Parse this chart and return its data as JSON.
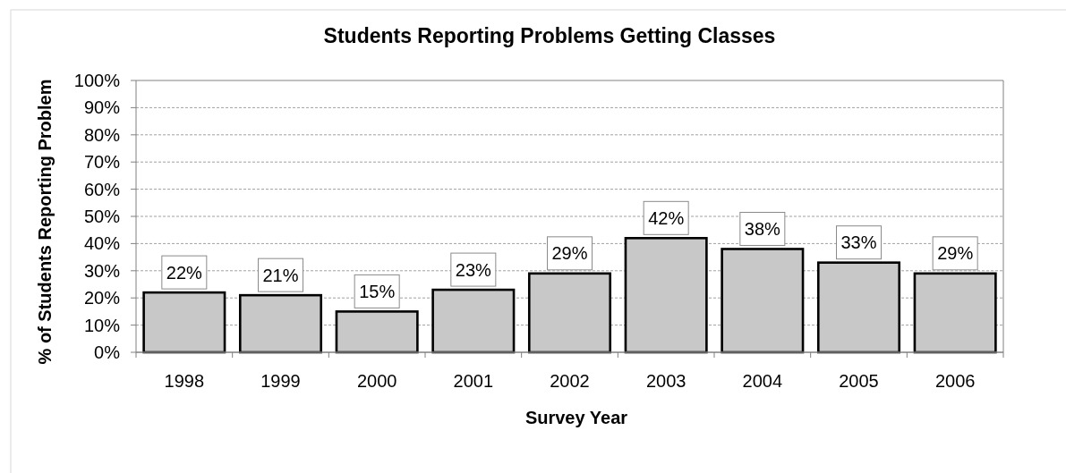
{
  "chart_data": {
    "type": "bar",
    "title": "Students Reporting Problems Getting Classes",
    "xlabel": "Survey Year",
    "ylabel": "% of Students Reporting Problem",
    "categories": [
      "1998",
      "1999",
      "2000",
      "2001",
      "2002",
      "2003",
      "2004",
      "2005",
      "2006"
    ],
    "values": [
      22,
      21,
      15,
      23,
      29,
      42,
      38,
      33,
      29
    ],
    "value_labels": [
      "22%",
      "21%",
      "15%",
      "23%",
      "29%",
      "42%",
      "38%",
      "33%",
      "29%"
    ],
    "color": "#c8c8c8",
    "ylim": [
      0,
      100
    ],
    "yticks": [
      {
        "value": 0,
        "label": "0%"
      },
      {
        "value": 10,
        "label": "10%"
      },
      {
        "value": 20,
        "label": "20%"
      },
      {
        "value": 30,
        "label": "30%"
      },
      {
        "value": 40,
        "label": "40%"
      },
      {
        "value": 50,
        "label": "50%"
      },
      {
        "value": 60,
        "label": "60%"
      },
      {
        "value": 70,
        "label": "70%"
      },
      {
        "value": 80,
        "label": "80%"
      },
      {
        "value": 90,
        "label": "90%"
      },
      {
        "value": 100,
        "label": "100%"
      }
    ],
    "grid": "y"
  }
}
